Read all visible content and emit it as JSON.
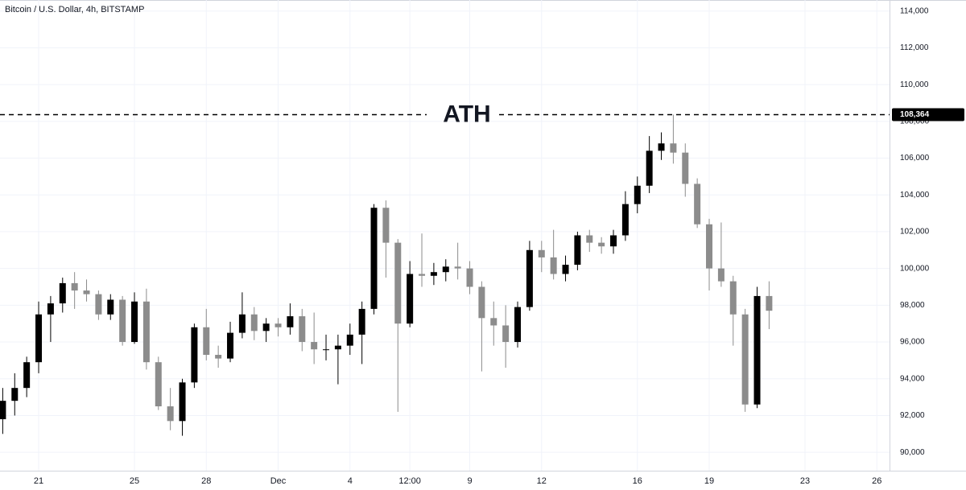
{
  "chart_data": {
    "type": "candlestick",
    "title": "Bitcoin / U.S. Dollar, 4h, BITSTAMP",
    "categories": [
      null,
      null,
      null,
      "21",
      null,
      null,
      null,
      null,
      null,
      null,
      null,
      "25",
      null,
      null,
      null,
      null,
      null,
      "28",
      null,
      null,
      null,
      null,
      null,
      "Dec",
      null,
      null,
      null,
      null,
      null,
      "4",
      null,
      null,
      null,
      null,
      "12:00",
      null,
      null,
      null,
      null,
      "9",
      null,
      null,
      null,
      null,
      null,
      "12",
      null,
      null,
      null,
      null,
      null,
      null,
      null,
      "16",
      null,
      null,
      null,
      null,
      null,
      "19",
      null,
      null,
      null,
      null,
      null,
      null,
      null,
      "23",
      null,
      null,
      null,
      null,
      null,
      "26"
    ],
    "open": [
      91800,
      92800,
      93500,
      94900,
      97500,
      98100,
      99200,
      98800,
      98600,
      97500,
      98300,
      96000,
      98200,
      94900,
      92500,
      91700,
      93800,
      96800,
      95300,
      95100,
      96500,
      97500,
      96600,
      97000,
      96800,
      97400,
      96000,
      95600,
      95600,
      95800,
      96400,
      97800,
      103300,
      101400,
      97000,
      99700,
      99600,
      99800,
      100100,
      100000,
      99000,
      97300,
      96900,
      96000,
      97900,
      101000,
      100600,
      99700,
      100200,
      101800,
      101400,
      101200,
      101800,
      103500,
      104500,
      106400,
      106800,
      106300,
      104600,
      102400,
      100000,
      99300,
      97500,
      92600,
      98500,
      null,
      null,
      null,
      null,
      null,
      null,
      null,
      null,
      null
    ],
    "high": [
      93500,
      94300,
      95200,
      98200,
      98500,
      99500,
      99800,
      99400,
      98800,
      98600,
      98500,
      98700,
      98900,
      95200,
      93500,
      94000,
      97000,
      97800,
      95800,
      97100,
      98700,
      97900,
      97300,
      97300,
      98100,
      97800,
      97600,
      96400,
      96400,
      97000,
      98200,
      103500,
      103700,
      101600,
      100400,
      101900,
      100300,
      100500,
      101400,
      100400,
      99300,
      98200,
      98000,
      98200,
      101500,
      101500,
      102100,
      100700,
      102000,
      102100,
      101700,
      102100,
      104200,
      105000,
      107200,
      107400,
      108364,
      106800,
      104900,
      102700,
      102500,
      99600,
      97800,
      99000,
      99300,
      null,
      null,
      null,
      null,
      null,
      null,
      null,
      null,
      null
    ],
    "low": [
      91000,
      92000,
      93000,
      94300,
      96000,
      97600,
      97800,
      98200,
      97200,
      97200,
      95800,
      95900,
      94500,
      92300,
      91200,
      90900,
      93500,
      95000,
      94600,
      94900,
      96200,
      96100,
      96000,
      96300,
      96400,
      95500,
      94800,
      95000,
      93700,
      95300,
      94800,
      97500,
      99500,
      92200,
      96800,
      99000,
      99100,
      99300,
      99400,
      98600,
      94400,
      95800,
      94600,
      95700,
      97700,
      99800,
      99400,
      99300,
      99900,
      100900,
      100800,
      100800,
      101500,
      103000,
      104100,
      105900,
      105700,
      103900,
      102200,
      98800,
      99000,
      95800,
      92200,
      92400,
      96700,
      null,
      null,
      null,
      null,
      null,
      null,
      null,
      null,
      null
    ],
    "close": [
      92800,
      93500,
      94900,
      97500,
      98100,
      99200,
      98800,
      98600,
      97500,
      98300,
      96000,
      98200,
      94900,
      92500,
      91700,
      93800,
      96800,
      95300,
      95100,
      96500,
      97500,
      96600,
      97000,
      96800,
      97400,
      96000,
      95600,
      95600,
      95800,
      96400,
      97800,
      103300,
      101400,
      97000,
      99700,
      99600,
      99800,
      100100,
      100000,
      99000,
      97300,
      96900,
      96000,
      97900,
      101000,
      100600,
      99700,
      100200,
      101800,
      101400,
      101200,
      101800,
      103500,
      104500,
      106400,
      106800,
      106300,
      104600,
      102400,
      100000,
      99300,
      97500,
      92600,
      98500,
      97700,
      null,
      null,
      null,
      null,
      null,
      null,
      null,
      null,
      null
    ],
    "up_color": "#000000",
    "down_color": "#8c8c8c",
    "ylim": [
      89000,
      114600
    ],
    "yticks": [
      {
        "value": 90000,
        "label": "90,000"
      },
      {
        "value": 92000,
        "label": "92,000"
      },
      {
        "value": 94000,
        "label": "94,000"
      },
      {
        "value": 96000,
        "label": "96,000"
      },
      {
        "value": 98000,
        "label": "98,000"
      },
      {
        "value": 100000,
        "label": "100,000"
      },
      {
        "value": 102000,
        "label": "102,000"
      },
      {
        "value": 104000,
        "label": "104,000"
      },
      {
        "value": 106000,
        "label": "106,000"
      },
      {
        "value": 108000,
        "label": "108,000"
      },
      {
        "value": 110000,
        "label": "110,000"
      },
      {
        "value": 112000,
        "label": "112,000"
      },
      {
        "value": 114000,
        "label": "114,000"
      }
    ],
    "grid": true,
    "annotation": {
      "text": "ATH",
      "value": 108364,
      "value_label": "108,364"
    }
  }
}
